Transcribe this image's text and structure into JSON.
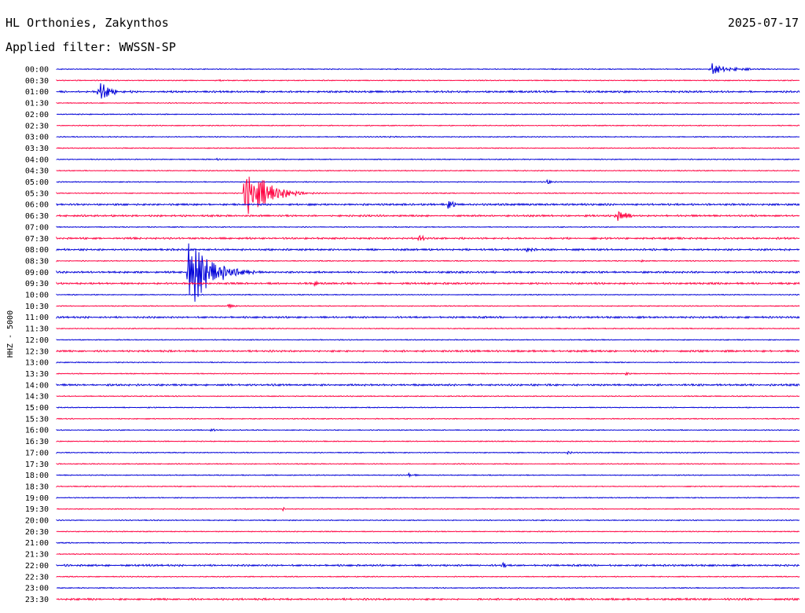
{
  "header": {
    "station": "HL Orthonies, Zakynthos",
    "date": "2025-07-17",
    "filter_label": "Applied filter: WWSSN-SP"
  },
  "colors": {
    "even_trace": "#0000d8",
    "odd_trace": "#ff0040",
    "background": "#ffffff"
  },
  "chart_data": {
    "type": "line",
    "title": "",
    "ylabel": "HHZ - 5000",
    "row_labels": [
      "00:00",
      "00:30",
      "01:00",
      "01:30",
      "02:00",
      "02:30",
      "03:00",
      "03:30",
      "04:00",
      "04:30",
      "05:00",
      "05:30",
      "06:00",
      "06:30",
      "07:00",
      "07:30",
      "08:00",
      "08:30",
      "09:00",
      "09:30",
      "10:00",
      "10:30",
      "11:00",
      "11:30",
      "12:00",
      "12:30",
      "13:00",
      "13:30",
      "14:00",
      "14:30",
      "15:00",
      "15:30",
      "16:00",
      "16:30",
      "17:00",
      "17:30",
      "18:00",
      "18:30",
      "19:00",
      "19:30",
      "20:00",
      "20:30",
      "21:00",
      "21:30",
      "22:00",
      "22:30",
      "23:00",
      "23:30"
    ],
    "row_minutes": 30,
    "series": [
      {
        "values": [
          1,
          1,
          2,
          1,
          1,
          1,
          1,
          1,
          1,
          1,
          1,
          1,
          2,
          2,
          1,
          2,
          2,
          1,
          2,
          2,
          1,
          1,
          2,
          1,
          1,
          2,
          1,
          1,
          2,
          1,
          1,
          1,
          1,
          1,
          1,
          1,
          1,
          1,
          1,
          1,
          1,
          1,
          1,
          1,
          2,
          1,
          1,
          2
        ]
      }
    ],
    "events": [
      {
        "row": "00:00",
        "minute": 26.4,
        "amp": 9,
        "dur": 1.9
      },
      {
        "row": "00:30",
        "minute": 6.5,
        "amp": 2,
        "dur": 0.6
      },
      {
        "row": "01:00",
        "minute": 1.7,
        "amp": 13,
        "dur": 1.4
      },
      {
        "row": "01:30",
        "minute": 21.9,
        "amp": 1.5,
        "dur": 1.2
      },
      {
        "row": "03:00",
        "minute": 13.3,
        "amp": 1.5,
        "dur": 1.5
      },
      {
        "row": "04:00",
        "minute": 6.4,
        "amp": 1.5,
        "dur": 1.5
      },
      {
        "row": "05:00",
        "minute": 19.8,
        "amp": 3,
        "dur": 0.6
      },
      {
        "row": "05:30",
        "minute": 7.6,
        "amp": 46,
        "dur": 1.7
      },
      {
        "row": "06:00",
        "minute": 15.8,
        "amp": 8,
        "dur": 0.7
      },
      {
        "row": "06:30",
        "minute": 22.6,
        "amp": 9,
        "dur": 1.2
      },
      {
        "row": "07:30",
        "minute": 14.6,
        "amp": 8,
        "dur": 0.6
      },
      {
        "row": "08:00",
        "minute": 19.0,
        "amp": 5,
        "dur": 0.7
      },
      {
        "row": "08:30",
        "minute": 23.6,
        "amp": 2,
        "dur": 0.5
      },
      {
        "row": "09:00",
        "minute": 5.3,
        "amp": 54,
        "dur": 1.9
      },
      {
        "row": "09:30",
        "minute": 10.4,
        "amp": 5,
        "dur": 0.3
      },
      {
        "row": "10:30",
        "minute": 6.9,
        "amp": 4,
        "dur": 0.7
      },
      {
        "row": "11:30",
        "minute": 20.0,
        "amp": 2,
        "dur": 0.4
      },
      {
        "row": "13:30",
        "minute": 23.0,
        "amp": 2,
        "dur": 0.8
      },
      {
        "row": "16:00",
        "minute": 6.2,
        "amp": 3,
        "dur": 0.7
      },
      {
        "row": "17:00",
        "minute": 20.6,
        "amp": 3,
        "dur": 0.6
      },
      {
        "row": "18:00",
        "minute": 14.2,
        "amp": 4,
        "dur": 0.7
      },
      {
        "row": "19:30",
        "minute": 9.1,
        "amp": 3,
        "dur": 0.4
      },
      {
        "row": "22:00",
        "minute": 18.0,
        "amp": 10,
        "dur": 0.2
      }
    ],
    "xlim": [
      0,
      30
    ],
    "grid": false
  }
}
